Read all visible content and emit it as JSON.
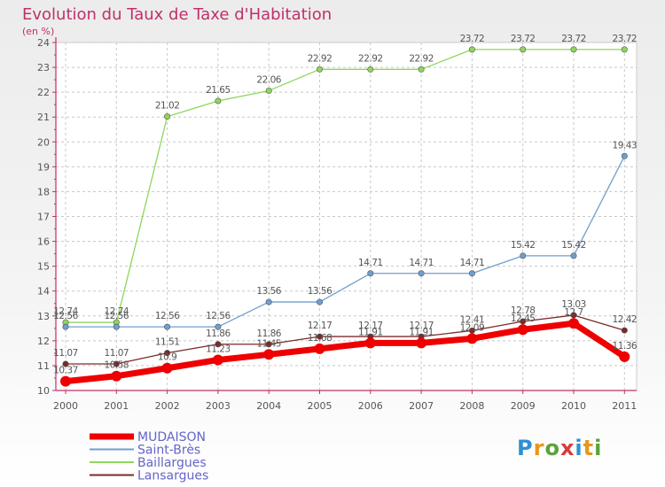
{
  "title": "Evolution du Taux de Taxe d'Habitation",
  "subtitle": "(en %)",
  "logo": {
    "text": "Proxiti"
  },
  "chart_data": {
    "type": "line",
    "x": [
      "2000",
      "2001",
      "2002",
      "2003",
      "2004",
      "2005",
      "2006",
      "2007",
      "2008",
      "2009",
      "2010",
      "2011"
    ],
    "ylim": [
      10,
      24
    ],
    "yticks": [
      10,
      11,
      12,
      13,
      14,
      15,
      16,
      17,
      18,
      19,
      20,
      21,
      22,
      23,
      24
    ],
    "grid": true,
    "legend_position": "bottom-left",
    "series": [
      {
        "name": "MUDAISON",
        "color": "#ee0000",
        "values": [
          10.37,
          10.58,
          10.9,
          11.23,
          11.45,
          11.68,
          11.91,
          11.91,
          12.09,
          12.45,
          12.7,
          11.36
        ],
        "labels": [
          "10.37",
          "10.58",
          "10.9",
          "11.23",
          "11.45",
          "11.68",
          "11.91",
          "11.91",
          "12.09",
          "12.45",
          "12.7",
          "11.36"
        ]
      },
      {
        "name": "Saint-Brès",
        "color": "#6f9fcf",
        "values": [
          12.56,
          12.56,
          12.56,
          12.56,
          13.56,
          13.56,
          14.71,
          14.71,
          14.71,
          15.42,
          15.42,
          19.43
        ],
        "labels": [
          "12.56",
          "12.56",
          "12.56",
          "12.56",
          "13.56",
          "13.56",
          "14.71",
          "14.71",
          "14.71",
          "15.42",
          "15.42",
          "19.43"
        ]
      },
      {
        "name": "Baillargues",
        "color": "#8fd65a",
        "values": [
          12.74,
          12.74,
          21.02,
          21.65,
          22.06,
          22.92,
          22.92,
          22.92,
          23.72,
          23.72,
          23.72,
          23.72
        ],
        "labels": [
          "12.74",
          "12.74",
          "21.02",
          "21.65",
          "22.06",
          "22.92",
          "22.92",
          "22.92",
          "23.72",
          "23.72",
          "23.72",
          "23.72"
        ]
      },
      {
        "name": "Lansargues",
        "color": "#7a2a2a",
        "values": [
          11.07,
          11.07,
          11.51,
          11.86,
          11.86,
          12.17,
          12.17,
          12.17,
          12.41,
          12.78,
          13.03,
          12.42
        ],
        "labels": [
          "11.07",
          "11.07",
          "11.51",
          "11.86",
          "11.86",
          "12.17",
          "12.17",
          "12.17",
          "12.41",
          "12.78",
          "13.03",
          "12.42"
        ]
      }
    ]
  }
}
